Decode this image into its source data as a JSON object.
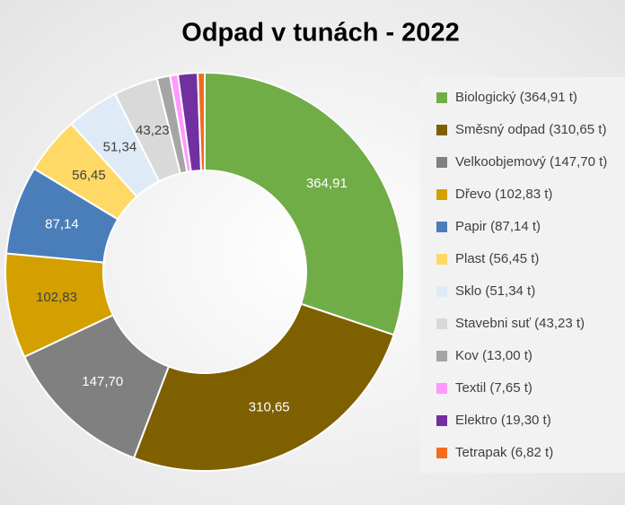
{
  "chart_data": {
    "type": "donut",
    "title": "Odpad v tunách - 2022",
    "categories": [
      "Biologický (364,91 t)",
      "Směsný odpad (310,65 t)",
      "Velkoobjemový (147,70 t)",
      "Dřevo (102,83 t)",
      "Papir (87,14 t)",
      "Plast (56,45 t)",
      "Sklo (51,34 t)",
      "Stavebni suť (43,23 t)",
      "Kov (13,00 t)",
      "Textil (7,65 t)",
      "Elektro (19,30 t)",
      "Tetrapak (6,82 t)"
    ],
    "values": [
      364.91,
      310.65,
      147.7,
      102.83,
      87.14,
      56.45,
      51.34,
      43.23,
      13.0,
      7.65,
      19.3,
      6.82
    ],
    "value_labels": [
      "364,91",
      "310,65",
      "147,70",
      "102,83",
      "87,14",
      "56,45",
      "51,34",
      "43,23",
      null,
      null,
      null,
      null
    ],
    "colors": [
      "#70ad47",
      "#7f6000",
      "#808080",
      "#d4a000",
      "#4a7ebb",
      "#ffd966",
      "#deebf7",
      "#d9d9d9",
      "#a5a5a5",
      "#ff99ff",
      "#7030a0",
      "#f26c1b"
    ],
    "legend": "right"
  }
}
